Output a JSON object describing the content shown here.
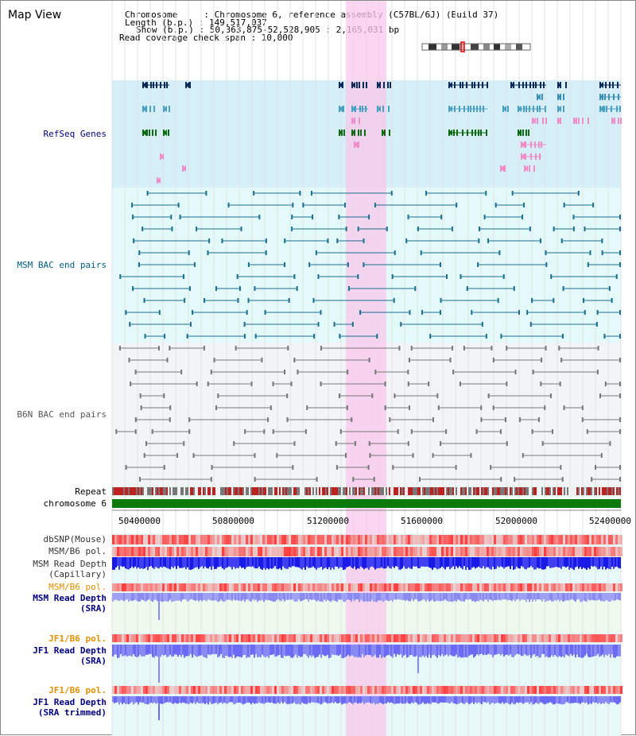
{
  "title": "Map View",
  "header": {
    "chromosome_label": "Chromosome     : Chromosome 6, reference assembly (C57BL/6J) (Build 37)",
    "length_label": "Length (b.p.) : 149,517,037",
    "show_label": "Show (b.p.) : 50,363,875-52,528,905 : 2,165,031 bp",
    "coverage_label": "Read coverage check span : 10,000"
  },
  "tracks": {
    "refseq": "RefSeq Genes",
    "msm_bac": "MSM BAC end pairs",
    "b6n_bac": "B6N BAC end pairs",
    "repeat": "Repeat",
    "chromosome": "chromosome 6",
    "dbsnp": "dbSNP(Mouse)",
    "msm_b6_pol_1": "MSM/B6 pol.",
    "msm_depth_cap_1": "MSM Read Depth",
    "msm_depth_cap_2": "(Capillary)",
    "msm_b6_pol_2": "MSM/B6 pol.",
    "msm_depth_sra_1": "MSM Read Depth",
    "msm_depth_sra_2": "(SRA)",
    "jf1_b6_pol_1": "JF1/B6 pol.",
    "jf1_depth_sra_1": "JF1 Read Depth",
    "jf1_depth_sra_2": "(SRA)",
    "jf1_b6_pol_2": "JF1/B6 pol.",
    "jf1_depth_trim_1": "JF1 Read Depth",
    "jf1_depth_trim_2": "(SRA trimmed)"
  },
  "axis_ticks": [
    "50400000",
    "50800000",
    "51200000",
    "51600000",
    "52000000",
    "52400000"
  ],
  "colors": {
    "refseq_bg": "#d8f0f8",
    "msm_bg": "#e6fafa",
    "b6n_bg": "#f0f4fa",
    "highlight": "#f8d8f0",
    "chromosome": "#0a7a0a",
    "label_blue": "#000080",
    "label_teal": "#006080",
    "label_orange": "#e09000"
  }
}
